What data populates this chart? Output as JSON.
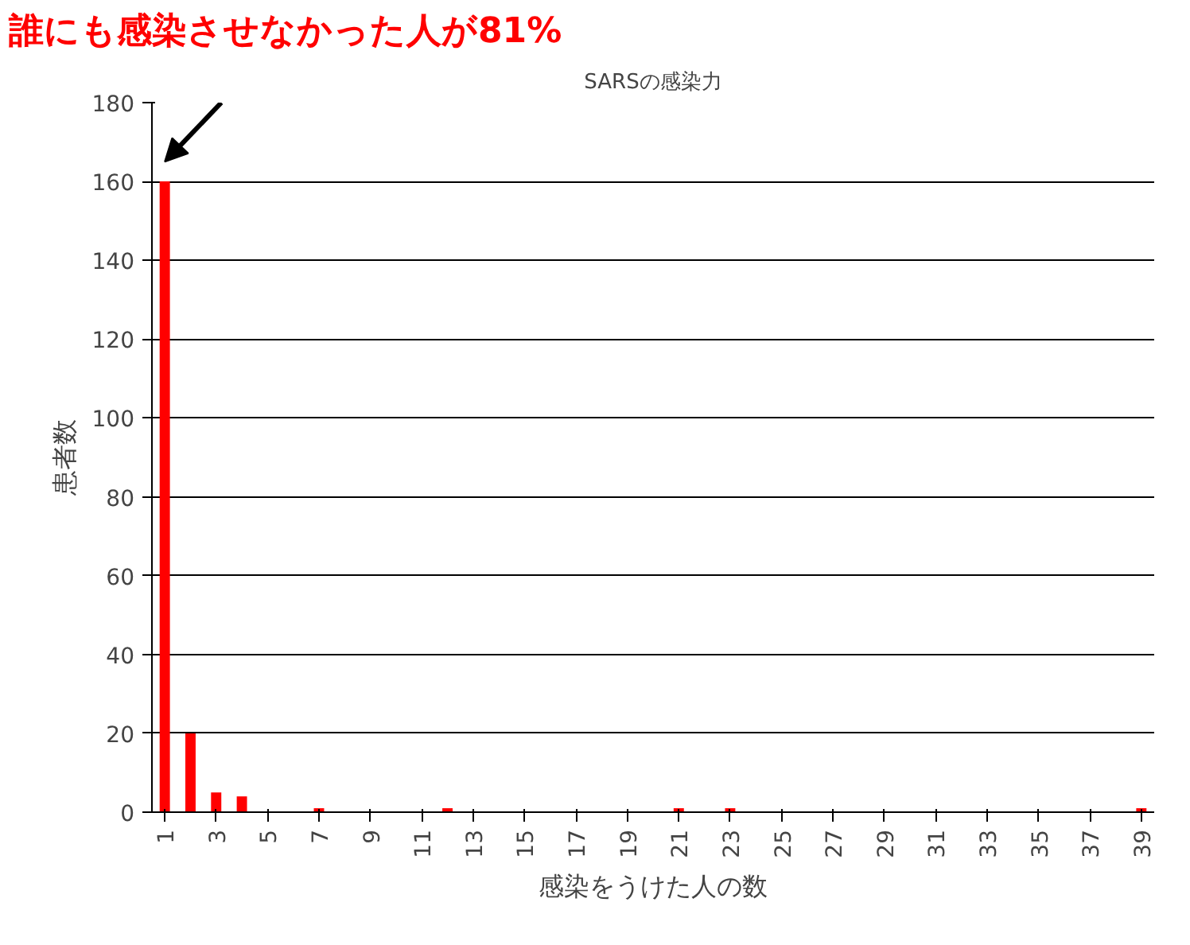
{
  "chart_data": {
    "type": "bar",
    "title": "SARSの感染力",
    "xlabel": "感染をうけた人の数",
    "ylabel": "患者数",
    "categories": [
      "1",
      null,
      "3",
      null,
      "5",
      null,
      "7",
      null,
      "9",
      null,
      "11",
      null,
      "13",
      null,
      "15",
      null,
      "17",
      null,
      "19",
      null,
      "21",
      null,
      "23",
      null,
      "25",
      null,
      "27",
      null,
      "29",
      null,
      "31",
      null,
      "33",
      null,
      "35",
      null,
      "37",
      null,
      "39"
    ],
    "values": [
      160,
      20,
      5,
      4,
      0,
      0,
      1,
      0,
      0,
      0,
      0,
      1,
      0,
      0,
      0,
      0,
      0,
      0,
      0,
      0,
      1,
      0,
      1,
      0,
      0,
      0,
      0,
      0,
      0,
      0,
      0,
      0,
      0,
      0,
      0,
      0,
      0,
      0,
      1
    ],
    "color": "#ff0000",
    "ylim": [
      0,
      180
    ],
    "yticks": [
      0,
      20,
      40,
      60,
      80,
      100,
      120,
      140,
      160,
      180
    ],
    "grid": "y",
    "annotations": [
      "誰にも感染させなかった人が81%"
    ]
  }
}
